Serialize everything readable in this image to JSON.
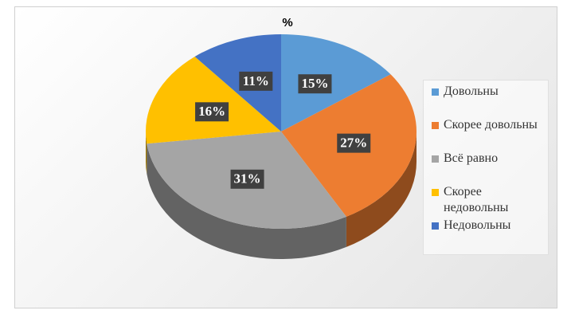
{
  "chart_data": {
    "type": "pie",
    "title": "%",
    "categories": [
      "Довольны",
      "Скорее довольны",
      "Всё равно",
      "Скорее недовольны",
      "Недовольны"
    ],
    "values": [
      15,
      27,
      31,
      16,
      11
    ],
    "value_labels": [
      "15%",
      "27%",
      "31%",
      "16%",
      "11%"
    ],
    "colors": [
      "#5b9bd5",
      "#ed7d31",
      "#a5a5a5",
      "#ffc000",
      "#4472c4"
    ],
    "legend": "right"
  }
}
